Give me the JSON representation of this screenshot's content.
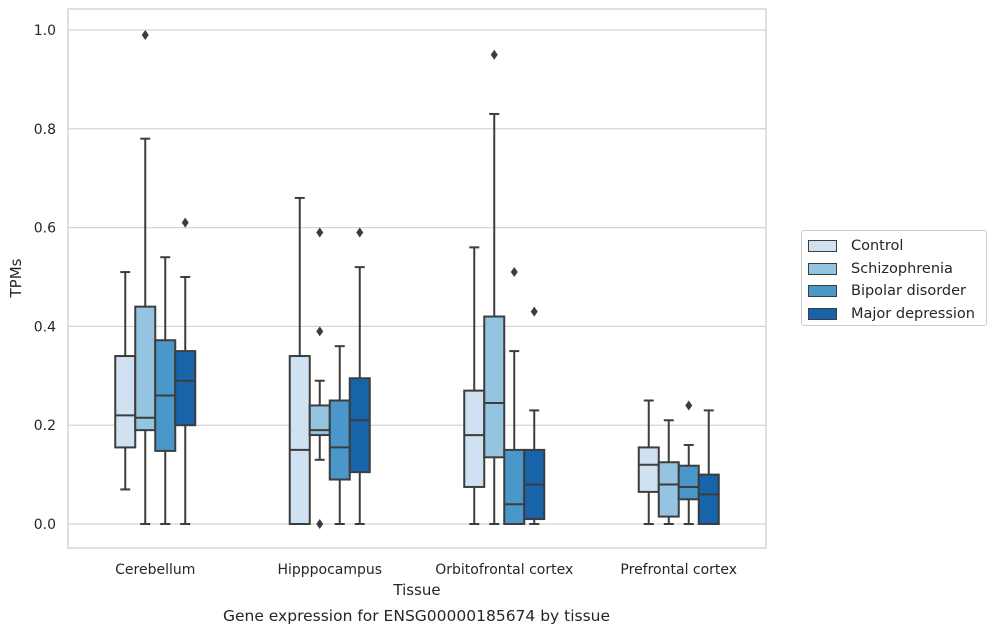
{
  "chart_data": {
    "type": "box",
    "title": "",
    "caption": "Gene expression for ENSG00000185674 by tissue",
    "xlabel": "Tissue",
    "ylabel": "TPMs",
    "ylim": [
      -0.05,
      1.04
    ],
    "yticks": [
      "0.0",
      "0.2",
      "0.4",
      "0.6",
      "0.8",
      "1.0"
    ],
    "yticks_values": [
      0,
      0.2,
      0.4,
      0.6,
      0.8,
      1.0
    ],
    "grid": true,
    "legend_position": "right",
    "categories": [
      "Cerebellum",
      "Hipppocampus",
      "Orbitofrontal cortex",
      "Prefrontal cortex"
    ],
    "series": [
      {
        "name": "Control",
        "color": "#d0e1f2",
        "boxes": [
          {
            "whislo": 0.07,
            "q1": 0.155,
            "med": 0.22,
            "q3": 0.34,
            "whishi": 0.51,
            "fliers": []
          },
          {
            "whislo": 0.0,
            "q1": 0.0,
            "med": 0.15,
            "q3": 0.34,
            "whishi": 0.66,
            "fliers": []
          },
          {
            "whislo": 0.0,
            "q1": 0.075,
            "med": 0.18,
            "q3": 0.27,
            "whishi": 0.56,
            "fliers": []
          },
          {
            "whislo": 0.0,
            "q1": 0.065,
            "med": 0.12,
            "q3": 0.155,
            "whishi": 0.25,
            "fliers": []
          }
        ]
      },
      {
        "name": "Schizophrenia",
        "color": "#94c4df",
        "boxes": [
          {
            "whislo": 0.0,
            "q1": 0.19,
            "med": 0.215,
            "q3": 0.44,
            "whishi": 0.78,
            "fliers": [
              0.99
            ]
          },
          {
            "whislo": 0.13,
            "q1": 0.18,
            "med": 0.19,
            "q3": 0.24,
            "whishi": 0.29,
            "fliers": [
              0.39,
              0.59,
              0.0
            ]
          },
          {
            "whislo": 0.0,
            "q1": 0.135,
            "med": 0.245,
            "q3": 0.42,
            "whishi": 0.83,
            "fliers": [
              0.95
            ]
          },
          {
            "whislo": 0.0,
            "q1": 0.015,
            "med": 0.08,
            "q3": 0.125,
            "whishi": 0.21,
            "fliers": []
          }
        ]
      },
      {
        "name": "Bipolar disorder",
        "color": "#4a98c9",
        "boxes": [
          {
            "whislo": 0.0,
            "q1": 0.148,
            "med": 0.26,
            "q3": 0.372,
            "whishi": 0.54,
            "fliers": []
          },
          {
            "whislo": 0.0,
            "q1": 0.09,
            "med": 0.155,
            "q3": 0.25,
            "whishi": 0.36,
            "fliers": []
          },
          {
            "whislo": 0.0,
            "q1": 0.0,
            "med": 0.04,
            "q3": 0.15,
            "whishi": 0.35,
            "fliers": [
              0.51
            ]
          },
          {
            "whislo": 0.0,
            "q1": 0.05,
            "med": 0.075,
            "q3": 0.118,
            "whishi": 0.16,
            "fliers": [
              0.24
            ]
          }
        ]
      },
      {
        "name": "Major depression",
        "color": "#1764ab",
        "boxes": [
          {
            "whislo": 0.0,
            "q1": 0.2,
            "med": 0.29,
            "q3": 0.35,
            "whishi": 0.5,
            "fliers": [
              0.61
            ]
          },
          {
            "whislo": 0.0,
            "q1": 0.105,
            "med": 0.21,
            "q3": 0.295,
            "whishi": 0.52,
            "fliers": [
              0.59
            ]
          },
          {
            "whislo": 0.0,
            "q1": 0.01,
            "med": 0.08,
            "q3": 0.15,
            "whishi": 0.23,
            "fliers": [
              0.43
            ]
          },
          {
            "whislo": 0.0,
            "q1": 0.0,
            "med": 0.06,
            "q3": 0.1,
            "whishi": 0.23,
            "fliers": []
          }
        ]
      }
    ]
  }
}
